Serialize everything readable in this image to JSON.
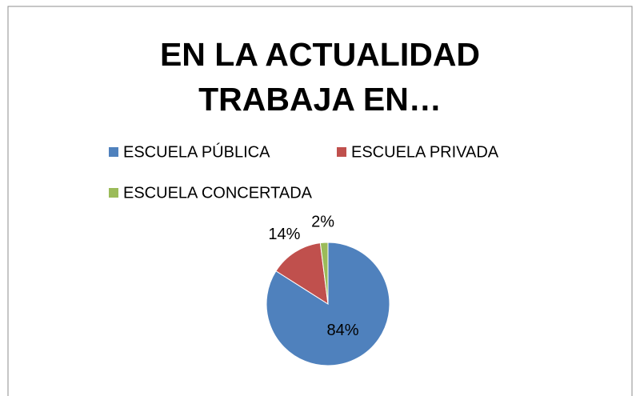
{
  "chart_data": {
    "type": "pie",
    "title": "EN LA ACTUALIDAD TRABAJA EN…",
    "categories": [
      "ESCUELA PÚBLICA",
      "ESCUELA PRIVADA",
      "ESCUELA CONCERTADA"
    ],
    "values": [
      84,
      14,
      2
    ],
    "value_labels": [
      "84%",
      "14%",
      "2%"
    ],
    "colors": [
      "#4f81bd",
      "#c0504d",
      "#9bbb59"
    ],
    "legend": "top"
  }
}
